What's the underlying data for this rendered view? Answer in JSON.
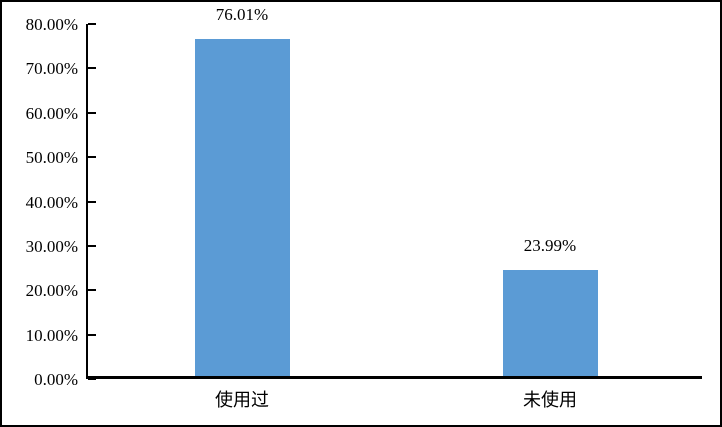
{
  "chart_data": {
    "type": "bar",
    "categories": [
      "使用过",
      "未使用"
    ],
    "values": [
      76.01,
      23.99
    ],
    "value_labels": [
      "76.01%",
      "23.99%"
    ],
    "title": "",
    "xlabel": "",
    "ylabel": "",
    "ylim": [
      0,
      80
    ],
    "ytick_values": [
      0,
      10,
      20,
      30,
      40,
      50,
      60,
      70,
      80
    ],
    "ytick_labels": [
      "0.00%",
      "10.00%",
      "20.00%",
      "30.00%",
      "40.00%",
      "50.00%",
      "60.00%",
      "70.00%",
      "80.00%"
    ],
    "grid": false,
    "legend_position": "none",
    "colors": {
      "bar_fill": "#5B9BD5",
      "axis_line": "#000000",
      "text": "#000000",
      "frame_border": "#000000",
      "background": "#FFFFFF"
    }
  }
}
